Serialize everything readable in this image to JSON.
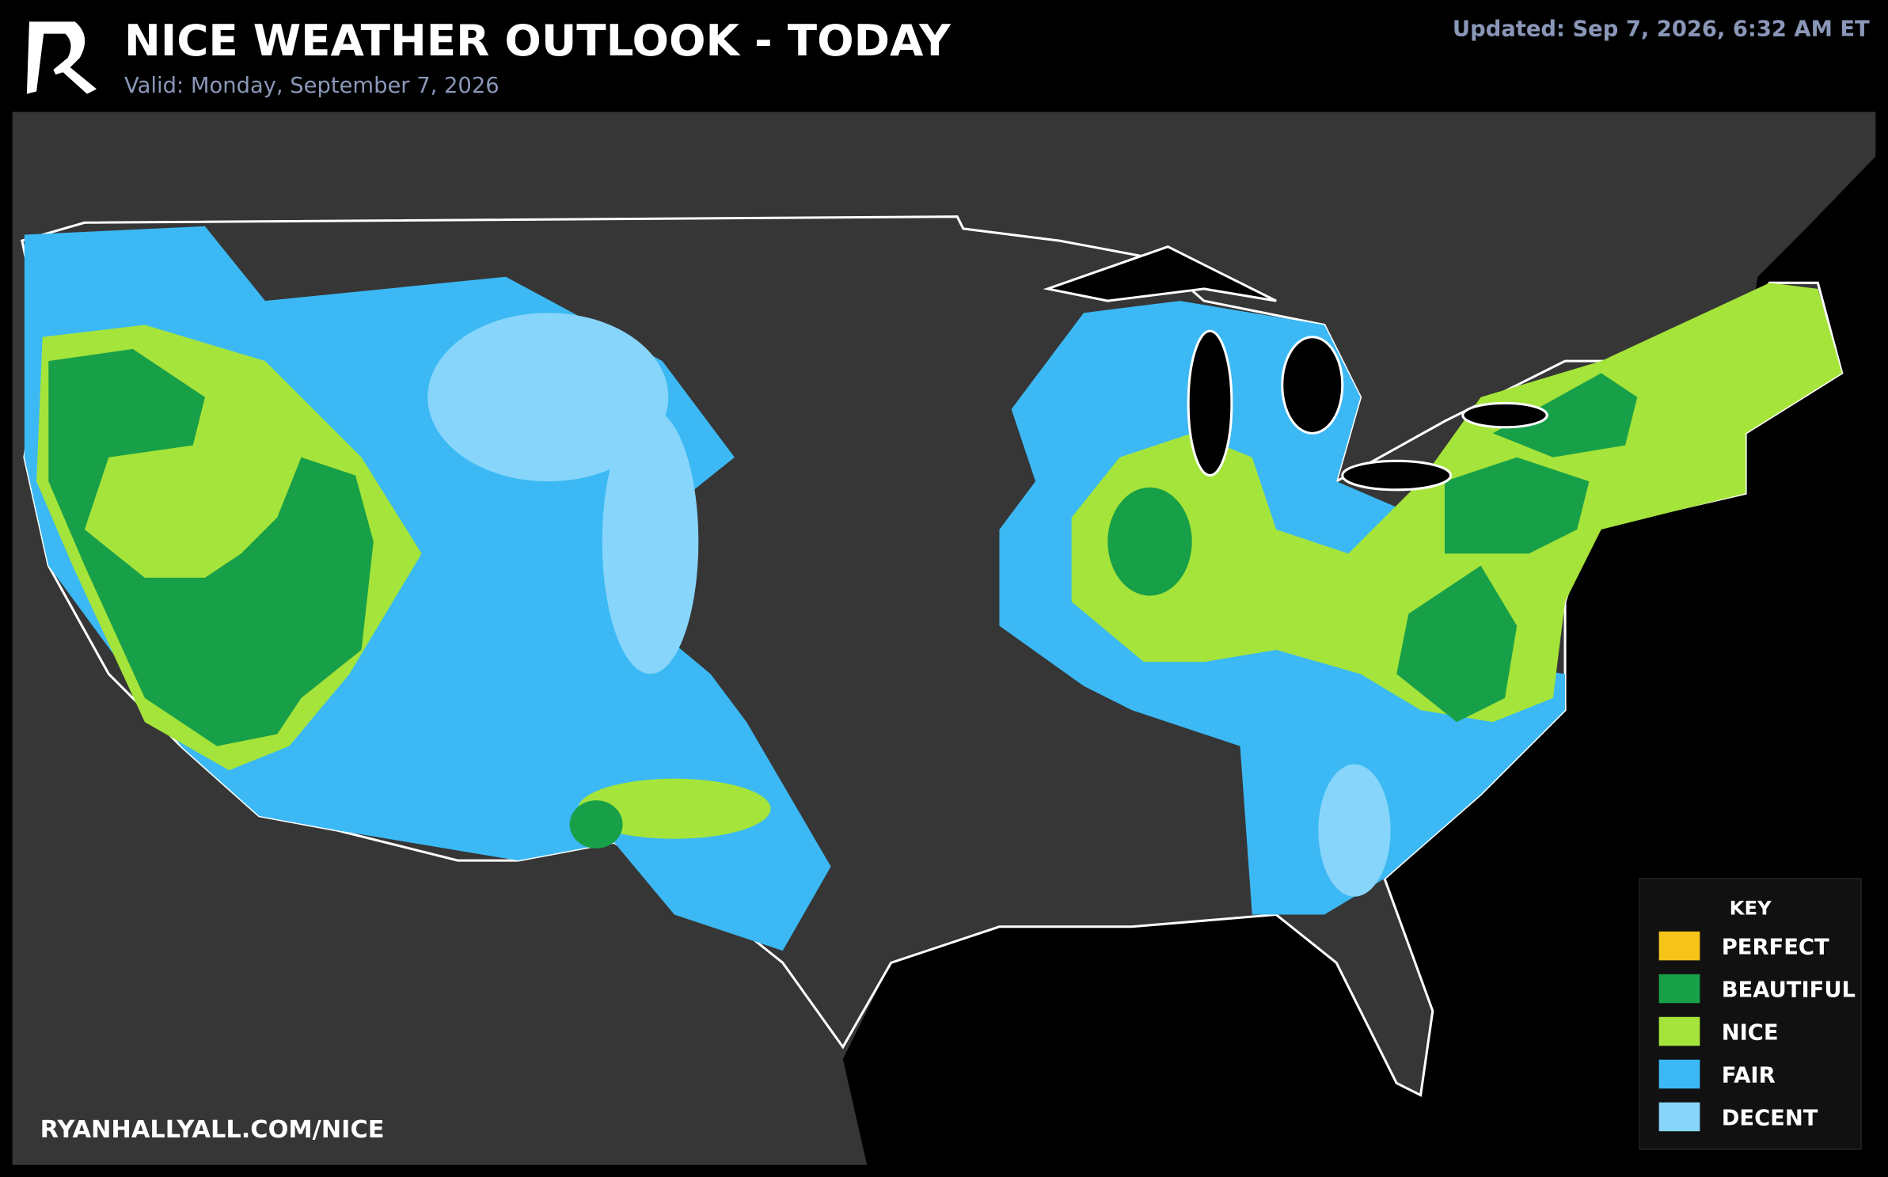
{
  "header": {
    "title": "NICE WEATHER OUTLOOK - TODAY",
    "valid": "Valid: Monday, September 7, 2026",
    "updated": "Updated: Sep 7, 2026, 6:32 AM ET"
  },
  "legend": {
    "title": "KEY",
    "items": [
      {
        "label": "PERFECT",
        "color": "#f6c319"
      },
      {
        "label": "BEAUTIFUL",
        "color": "#18a048"
      },
      {
        "label": "NICE",
        "color": "#a5e43a"
      },
      {
        "label": "FAIR",
        "color": "#3cb9f4"
      },
      {
        "label": "DECENT",
        "color": "#87d5fa"
      }
    ]
  },
  "footer": {
    "url": "RYANHALLYALL.COM/NICE"
  }
}
